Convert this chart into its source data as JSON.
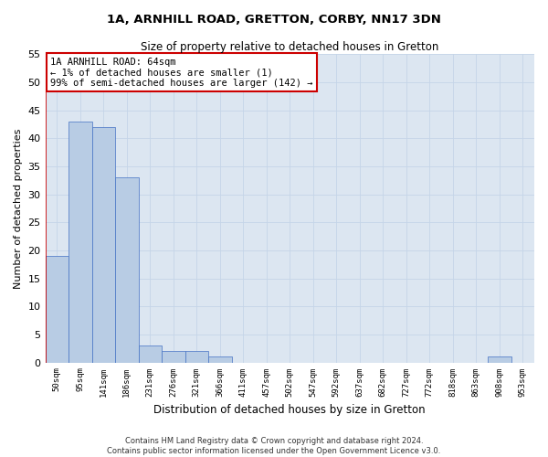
{
  "title": "1A, ARNHILL ROAD, GRETTON, CORBY, NN17 3DN",
  "subtitle": "Size of property relative to detached houses in Gretton",
  "xlabel": "Distribution of detached houses by size in Gretton",
  "ylabel": "Number of detached properties",
  "categories": [
    "50sqm",
    "95sqm",
    "141sqm",
    "186sqm",
    "231sqm",
    "276sqm",
    "321sqm",
    "366sqm",
    "411sqm",
    "457sqm",
    "502sqm",
    "547sqm",
    "592sqm",
    "637sqm",
    "682sqm",
    "727sqm",
    "772sqm",
    "818sqm",
    "863sqm",
    "908sqm",
    "953sqm"
  ],
  "values": [
    19,
    43,
    42,
    33,
    3,
    2,
    2,
    1,
    0,
    0,
    0,
    0,
    0,
    0,
    0,
    0,
    0,
    0,
    0,
    1,
    0
  ],
  "bar_color": "#b8cce4",
  "bar_edge_color": "#4472c4",
  "highlight_line_color": "#cc0000",
  "ylim": [
    0,
    55
  ],
  "yticks": [
    0,
    5,
    10,
    15,
    20,
    25,
    30,
    35,
    40,
    45,
    50,
    55
  ],
  "annotation_text": "1A ARNHILL ROAD: 64sqm\n← 1% of detached houses are smaller (1)\n99% of semi-detached houses are larger (142) →",
  "annotation_box_color": "#ffffff",
  "annotation_box_edge_color": "#cc0000",
  "background_color": "#ffffff",
  "plot_bg_color": "#dce6f1",
  "grid_color": "#c5d5e8",
  "footnote": "Contains HM Land Registry data © Crown copyright and database right 2024.\nContains public sector information licensed under the Open Government Licence v3.0."
}
